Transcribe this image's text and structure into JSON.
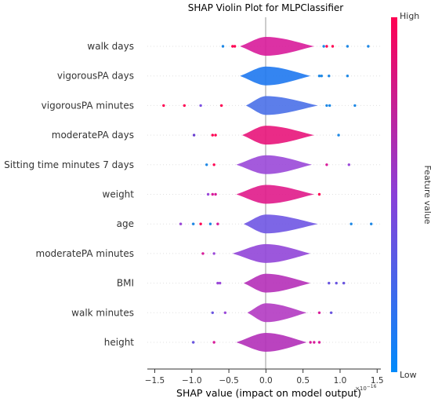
{
  "chart_data": {
    "type": "violin",
    "title": "SHAP Violin Plot for MLPClassifier",
    "xlabel": "SHAP value (impact on model output)",
    "x_exponent_label": "1e-16",
    "xlim": [
      -1.6,
      1.55
    ],
    "x_ticks": [
      -1.5,
      -1.0,
      -0.5,
      0.0,
      0.5,
      1.0,
      1.5
    ],
    "x_tick_labels": [
      "−1.5",
      "−1.0",
      "−0.5",
      "0.0",
      "0.5",
      "1.0",
      "1.5"
    ],
    "colorbar": {
      "label": "Feature value",
      "high_label": "High",
      "low_label": "Low",
      "high_color": "#ff0052",
      "low_color": "#008bfb"
    },
    "features": [
      {
        "name": "walk days",
        "violin_range": [
          -0.35,
          0.65
        ],
        "color": "#d81b9a",
        "outliers": [
          [
            -0.58,
            "#1e88e5"
          ],
          [
            -0.45,
            "#ff0052"
          ],
          [
            -0.42,
            "#ff0052"
          ],
          [
            0.78,
            "#1e88e5"
          ],
          [
            0.82,
            "#ff0052"
          ],
          [
            0.9,
            "#ff0052"
          ],
          [
            1.1,
            "#1e88e5"
          ],
          [
            1.38,
            "#1e88e5"
          ]
        ]
      },
      {
        "name": "vigorousPA days",
        "violin_range": [
          -0.35,
          0.6
        ],
        "color": "#1e78f0",
        "outliers": [
          [
            0.72,
            "#1e88e5"
          ],
          [
            0.75,
            "#1e88e5"
          ],
          [
            0.85,
            "#1e88e5"
          ],
          [
            1.1,
            "#1e88e5"
          ]
        ]
      },
      {
        "name": "vigorousPA minutes",
        "violin_range": [
          -0.27,
          0.7
        ],
        "color": "#4a70e8",
        "outliers": [
          [
            -1.38,
            "#ff0052"
          ],
          [
            -1.1,
            "#ff0052"
          ],
          [
            -0.88,
            "#7b50e0"
          ],
          [
            -0.6,
            "#ff0052"
          ],
          [
            0.82,
            "#1e88e5"
          ],
          [
            0.86,
            "#1e88e5"
          ],
          [
            1.2,
            "#1e88e5"
          ]
        ]
      },
      {
        "name": "moderatePA days",
        "violin_range": [
          -0.32,
          0.65
        ],
        "color": "#e8147a",
        "outliers": [
          [
            -0.97,
            "#6a40d0"
          ],
          [
            -0.72,
            "#ff0052"
          ],
          [
            -0.68,
            "#ff0052"
          ],
          [
            0.98,
            "#1e88e5"
          ]
        ]
      },
      {
        "name": "Sitting time minutes 7 days",
        "violin_range": [
          -0.4,
          0.62
        ],
        "color": "#9a48d8",
        "outliers": [
          [
            -0.8,
            "#1e88e5"
          ],
          [
            -0.7,
            "#ff0052"
          ],
          [
            0.82,
            "#d81b9a"
          ],
          [
            1.12,
            "#9a48d8"
          ]
        ]
      },
      {
        "name": "weight",
        "violin_range": [
          -0.4,
          0.65
        ],
        "color": "#e01a8a",
        "outliers": [
          [
            -0.78,
            "#9a48d8"
          ],
          [
            -0.72,
            "#d81b9a"
          ],
          [
            -0.68,
            "#d81b9a"
          ],
          [
            0.72,
            "#ff0052"
          ]
        ]
      },
      {
        "name": "age",
        "violin_range": [
          -0.3,
          0.7
        ],
        "color": "#6f55e3",
        "outliers": [
          [
            -1.15,
            "#9a48d8"
          ],
          [
            -0.98,
            "#1e88e5"
          ],
          [
            -0.88,
            "#ff0052"
          ],
          [
            -0.75,
            "#1e88e5"
          ],
          [
            -0.65,
            "#d81b9a"
          ],
          [
            1.15,
            "#1e88e5"
          ],
          [
            1.42,
            "#1e88e5"
          ]
        ]
      },
      {
        "name": "moderatePA minutes",
        "violin_range": [
          -0.45,
          0.6
        ],
        "color": "#9145d8",
        "outliers": [
          [
            -0.85,
            "#d81b9a"
          ],
          [
            -0.7,
            "#9a48d8"
          ]
        ]
      },
      {
        "name": "BMI",
        "violin_range": [
          -0.3,
          0.6
        ],
        "color": "#b52fb8",
        "outliers": [
          [
            -0.65,
            "#9a48d8"
          ],
          [
            -0.62,
            "#9a48d8"
          ],
          [
            0.85,
            "#6a55e0"
          ],
          [
            0.95,
            "#6a55e0"
          ],
          [
            1.05,
            "#6a55e0"
          ]
        ]
      },
      {
        "name": "walk minutes",
        "violin_range": [
          -0.25,
          0.55
        ],
        "color": "#b33ac2",
        "outliers": [
          [
            -0.72,
            "#6a55e0"
          ],
          [
            -0.55,
            "#9a48d8"
          ],
          [
            0.72,
            "#d81b9a"
          ],
          [
            0.88,
            "#6a55e0"
          ]
        ]
      },
      {
        "name": "height",
        "violin_range": [
          -0.4,
          0.55
        ],
        "color": "#b22fb8",
        "outliers": [
          [
            -0.98,
            "#6a55e0"
          ],
          [
            -0.7,
            "#d81b9a"
          ],
          [
            0.6,
            "#d81b9a"
          ],
          [
            0.65,
            "#d81b9a"
          ],
          [
            0.72,
            "#d81b9a"
          ]
        ]
      }
    ]
  }
}
